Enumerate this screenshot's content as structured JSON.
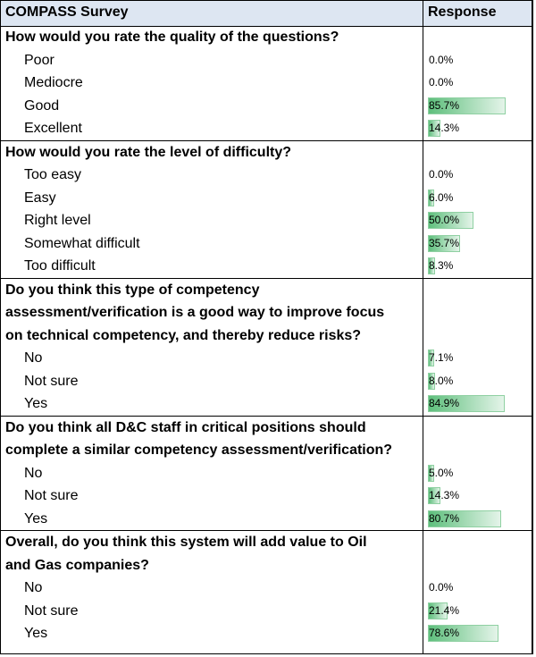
{
  "header": {
    "title": "COMPASS Survey",
    "response": "Response"
  },
  "sections": [
    {
      "question": "How would you rate the quality of the questions?",
      "lines": 1,
      "options": [
        {
          "label": "Poor",
          "value": "0.0%",
          "fraction": 0.0
        },
        {
          "label": "Mediocre",
          "value": "0.0%",
          "fraction": 0.0
        },
        {
          "label": "Good",
          "value": "85.7%",
          "fraction": 0.857
        },
        {
          "label": "Excellent",
          "value": "14.3%",
          "fraction": 0.143
        }
      ]
    },
    {
      "question": "How would you rate the level of difficulty?",
      "lines": 1,
      "options": [
        {
          "label": "Too easy",
          "value": "0.0%",
          "fraction": 0.0
        },
        {
          "label": "Easy",
          "value": "6.0%",
          "fraction": 0.06
        },
        {
          "label": "Right level",
          "value": "50.0%",
          "fraction": 0.5
        },
        {
          "label": "Somewhat difficult",
          "value": "35.7%",
          "fraction": 0.357
        },
        {
          "label": "Too difficult",
          "value": "8.3%",
          "fraction": 0.083
        }
      ]
    },
    {
      "question": "Do you think this type of competency\nassessment/verification is a good way to improve focus\non technical competency, and thereby reduce risks?",
      "lines": 3,
      "options": [
        {
          "label": "No",
          "value": "7.1%",
          "fraction": 0.071
        },
        {
          "label": "Not sure",
          "value": "8.0%",
          "fraction": 0.08
        },
        {
          "label": "Yes",
          "value": "84.9%",
          "fraction": 0.849
        }
      ]
    },
    {
      "question": "Do you think all D&C staff in critical positions should\ncomplete a similar competency assessment/verification?",
      "lines": 2,
      "options": [
        {
          "label": "No",
          "value": "5.0%",
          "fraction": 0.05
        },
        {
          "label": "Not sure",
          "value": "14.3%",
          "fraction": 0.143
        },
        {
          "label": "Yes",
          "value": "80.7%",
          "fraction": 0.807
        }
      ]
    },
    {
      "question": "Overall, do you think this system will add value to Oil\nand Gas companies?",
      "lines": 2,
      "options": [
        {
          "label": "No",
          "value": "0.0%",
          "fraction": 0.0
        },
        {
          "label": "Not sure",
          "value": "21.4%",
          "fraction": 0.214
        },
        {
          "label": "Yes",
          "value": "78.6%",
          "fraction": 0.786
        }
      ]
    }
  ]
}
